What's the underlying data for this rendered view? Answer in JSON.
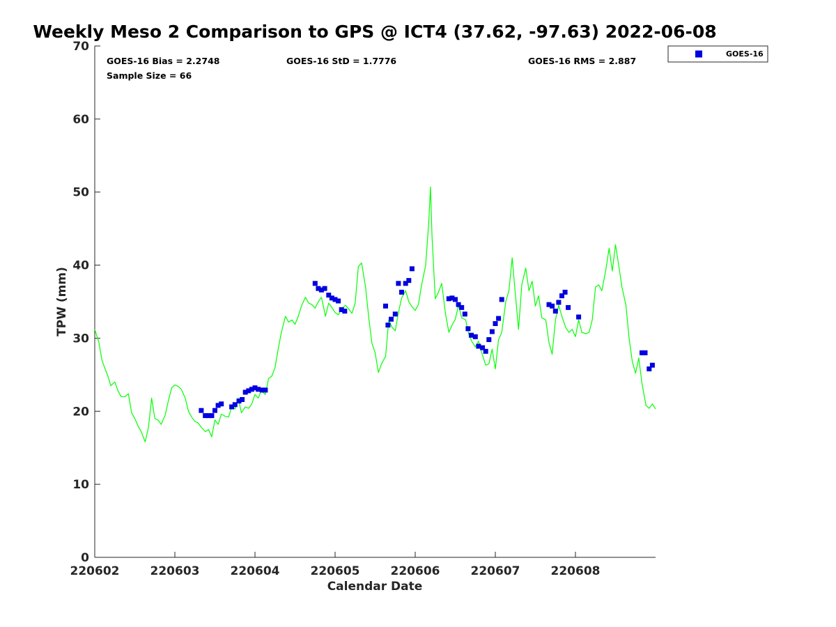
{
  "chart_data": {
    "type": "scatter",
    "title": "Weekly Meso 2 Comparison to GPS @ ICT4 (37.62, -97.63) 2022-06-08",
    "xlabel": "Calendar Date",
    "ylabel": "TPW (mm)",
    "xlim": [
      0,
      7
    ],
    "ylim": [
      0,
      70
    ],
    "x_ticks": [
      0,
      1,
      2,
      3,
      4,
      5,
      6
    ],
    "x_tick_labels": [
      "220602",
      "220603",
      "220604",
      "220605",
      "220606",
      "220607",
      "220608"
    ],
    "y_ticks": [
      0,
      10,
      20,
      30,
      40,
      50,
      60,
      70
    ],
    "y_tick_labels": [
      "0",
      "10",
      "20",
      "30",
      "40",
      "50",
      "60",
      "70"
    ],
    "grid": false,
    "legend_position": "top-right, outside plot",
    "stats": {
      "bias": "GOES-16 Bias = 2.2748",
      "std": "GOES-16 StD = 1.7776",
      "rms": "GOES-16 RMS = 2.887",
      "sample": "Sample Size = 66"
    },
    "series": [
      {
        "name": "GOES-16",
        "kind": "scatter",
        "marker": "square",
        "color": "#0000e0",
        "points": [
          [
            1.33,
            20.1
          ],
          [
            1.38,
            19.4
          ],
          [
            1.42,
            19.4
          ],
          [
            1.46,
            19.4
          ],
          [
            1.5,
            20.1
          ],
          [
            1.54,
            20.8
          ],
          [
            1.58,
            21.0
          ],
          [
            1.71,
            20.6
          ],
          [
            1.75,
            20.9
          ],
          [
            1.8,
            21.4
          ],
          [
            1.84,
            21.6
          ],
          [
            1.88,
            22.6
          ],
          [
            1.92,
            22.8
          ],
          [
            1.96,
            23.0
          ],
          [
            2.0,
            23.2
          ],
          [
            2.04,
            23.0
          ],
          [
            2.09,
            22.9
          ],
          [
            2.13,
            22.9
          ],
          [
            2.75,
            37.5
          ],
          [
            2.79,
            36.8
          ],
          [
            2.83,
            36.6
          ],
          [
            2.87,
            36.8
          ],
          [
            2.92,
            35.9
          ],
          [
            2.96,
            35.5
          ],
          [
            3.0,
            35.3
          ],
          [
            3.04,
            35.1
          ],
          [
            3.08,
            33.9
          ],
          [
            3.12,
            33.7
          ],
          [
            3.63,
            34.4
          ],
          [
            3.66,
            31.8
          ],
          [
            3.7,
            32.6
          ],
          [
            3.75,
            33.3
          ],
          [
            3.79,
            37.5
          ],
          [
            3.83,
            36.3
          ],
          [
            3.88,
            37.5
          ],
          [
            3.92,
            37.9
          ],
          [
            3.96,
            39.5
          ],
          [
            4.42,
            35.4
          ],
          [
            4.46,
            35.5
          ],
          [
            4.5,
            35.3
          ],
          [
            4.54,
            34.6
          ],
          [
            4.58,
            34.2
          ],
          [
            4.62,
            33.3
          ],
          [
            4.66,
            31.3
          ],
          [
            4.7,
            30.4
          ],
          [
            4.75,
            30.2
          ],
          [
            4.79,
            28.9
          ],
          [
            4.84,
            28.7
          ],
          [
            4.88,
            28.2
          ],
          [
            4.92,
            29.8
          ],
          [
            4.96,
            30.9
          ],
          [
            5.0,
            32.0
          ],
          [
            5.04,
            32.7
          ],
          [
            5.08,
            35.3
          ],
          [
            5.67,
            34.6
          ],
          [
            5.71,
            34.4
          ],
          [
            5.75,
            33.7
          ],
          [
            5.79,
            34.9
          ],
          [
            5.83,
            35.8
          ],
          [
            5.87,
            36.3
          ],
          [
            5.91,
            34.2
          ],
          [
            6.04,
            32.9
          ],
          [
            6.83,
            28.0
          ],
          [
            6.87,
            28.0
          ],
          [
            6.92,
            25.8
          ],
          [
            6.96,
            26.3
          ]
        ]
      },
      {
        "name": "",
        "kind": "line",
        "color": "#00ff00",
        "points": [
          [
            0.0,
            31.2
          ],
          [
            0.05,
            29.5
          ],
          [
            0.09,
            27.0
          ],
          [
            0.13,
            25.8
          ],
          [
            0.17,
            24.6
          ],
          [
            0.2,
            23.5
          ],
          [
            0.25,
            24.0
          ],
          [
            0.29,
            22.8
          ],
          [
            0.33,
            22.0
          ],
          [
            0.38,
            22.0
          ],
          [
            0.42,
            22.4
          ],
          [
            0.46,
            19.8
          ],
          [
            0.5,
            19.0
          ],
          [
            0.54,
            18.0
          ],
          [
            0.58,
            17.2
          ],
          [
            0.63,
            15.8
          ],
          [
            0.67,
            17.8
          ],
          [
            0.71,
            21.8
          ],
          [
            0.75,
            19.0
          ],
          [
            0.79,
            18.8
          ],
          [
            0.83,
            18.2
          ],
          [
            0.88,
            19.5
          ],
          [
            0.92,
            21.5
          ],
          [
            0.96,
            23.2
          ],
          [
            1.0,
            23.6
          ],
          [
            1.04,
            23.4
          ],
          [
            1.08,
            23.0
          ],
          [
            1.13,
            21.8
          ],
          [
            1.17,
            20.0
          ],
          [
            1.21,
            19.2
          ],
          [
            1.25,
            18.6
          ],
          [
            1.29,
            18.4
          ],
          [
            1.33,
            17.8
          ],
          [
            1.38,
            17.2
          ],
          [
            1.42,
            17.5
          ],
          [
            1.46,
            16.5
          ],
          [
            1.5,
            18.8
          ],
          [
            1.54,
            18.2
          ],
          [
            1.58,
            19.6
          ],
          [
            1.63,
            19.3
          ],
          [
            1.67,
            19.2
          ],
          [
            1.71,
            20.6
          ],
          [
            1.75,
            20.3
          ],
          [
            1.79,
            21.8
          ],
          [
            1.83,
            19.8
          ],
          [
            1.88,
            20.6
          ],
          [
            1.92,
            20.4
          ],
          [
            1.96,
            21.0
          ],
          [
            2.0,
            22.3
          ],
          [
            2.04,
            21.8
          ],
          [
            2.08,
            22.8
          ],
          [
            2.13,
            22.3
          ],
          [
            2.17,
            24.5
          ],
          [
            2.21,
            24.8
          ],
          [
            2.25,
            26.0
          ],
          [
            2.29,
            28.5
          ],
          [
            2.33,
            30.8
          ],
          [
            2.38,
            33.0
          ],
          [
            2.42,
            32.2
          ],
          [
            2.46,
            32.5
          ],
          [
            2.5,
            31.9
          ],
          [
            2.54,
            33.0
          ],
          [
            2.58,
            34.4
          ],
          [
            2.63,
            35.6
          ],
          [
            2.67,
            34.8
          ],
          [
            2.71,
            34.6
          ],
          [
            2.75,
            34.1
          ],
          [
            2.79,
            35.0
          ],
          [
            2.83,
            35.6
          ],
          [
            2.88,
            33.0
          ],
          [
            2.92,
            34.8
          ],
          [
            2.96,
            34.2
          ],
          [
            3.0,
            33.5
          ],
          [
            3.04,
            33.2
          ],
          [
            3.08,
            34.0
          ],
          [
            3.13,
            34.5
          ],
          [
            3.17,
            34.0
          ],
          [
            3.21,
            33.4
          ],
          [
            3.25,
            34.8
          ],
          [
            3.29,
            39.8
          ],
          [
            3.33,
            40.3
          ],
          [
            3.38,
            37.0
          ],
          [
            3.42,
            32.8
          ],
          [
            3.46,
            29.3
          ],
          [
            3.5,
            28.0
          ],
          [
            3.54,
            25.3
          ],
          [
            3.58,
            26.5
          ],
          [
            3.63,
            27.5
          ],
          [
            3.67,
            32.5
          ],
          [
            3.71,
            31.5
          ],
          [
            3.75,
            31.0
          ],
          [
            3.79,
            33.5
          ],
          [
            3.83,
            35.5
          ],
          [
            3.88,
            36.5
          ],
          [
            3.92,
            35.0
          ],
          [
            3.96,
            34.3
          ],
          [
            4.0,
            33.8
          ],
          [
            4.04,
            34.6
          ],
          [
            4.08,
            37.3
          ],
          [
            4.13,
            40.0
          ],
          [
            4.17,
            46.0
          ],
          [
            4.19,
            50.7
          ],
          [
            4.21,
            44.0
          ],
          [
            4.25,
            35.4
          ],
          [
            4.29,
            36.3
          ],
          [
            4.33,
            37.5
          ],
          [
            4.38,
            33.2
          ],
          [
            4.42,
            30.8
          ],
          [
            4.46,
            31.8
          ],
          [
            4.5,
            32.6
          ],
          [
            4.54,
            34.5
          ],
          [
            4.58,
            32.8
          ],
          [
            4.63,
            32.5
          ],
          [
            4.67,
            30.5
          ],
          [
            4.71,
            29.5
          ],
          [
            4.75,
            28.8
          ],
          [
            4.79,
            29.6
          ],
          [
            4.83,
            28.0
          ],
          [
            4.88,
            26.3
          ],
          [
            4.92,
            26.5
          ],
          [
            4.96,
            28.5
          ],
          [
            5.0,
            25.8
          ],
          [
            5.04,
            29.8
          ],
          [
            5.08,
            30.8
          ],
          [
            5.13,
            35.0
          ],
          [
            5.17,
            36.5
          ],
          [
            5.21,
            41.0
          ],
          [
            5.25,
            36.0
          ],
          [
            5.29,
            31.2
          ],
          [
            5.33,
            37.3
          ],
          [
            5.38,
            39.6
          ],
          [
            5.42,
            36.5
          ],
          [
            5.46,
            37.8
          ],
          [
            5.5,
            34.4
          ],
          [
            5.54,
            35.8
          ],
          [
            5.58,
            32.8
          ],
          [
            5.63,
            32.5
          ],
          [
            5.67,
            29.4
          ],
          [
            5.71,
            27.8
          ],
          [
            5.75,
            32.5
          ],
          [
            5.79,
            34.5
          ],
          [
            5.83,
            33.0
          ],
          [
            5.88,
            31.4
          ],
          [
            5.92,
            30.8
          ],
          [
            5.96,
            31.2
          ],
          [
            6.0,
            30.2
          ],
          [
            6.04,
            32.5
          ],
          [
            6.08,
            30.8
          ],
          [
            6.13,
            30.6
          ],
          [
            6.17,
            30.8
          ],
          [
            6.21,
            32.5
          ],
          [
            6.25,
            37.0
          ],
          [
            6.29,
            37.3
          ],
          [
            6.33,
            36.5
          ],
          [
            6.38,
            39.4
          ],
          [
            6.42,
            42.3
          ],
          [
            6.46,
            39.2
          ],
          [
            6.5,
            42.8
          ],
          [
            6.54,
            40.0
          ],
          [
            6.58,
            37.0
          ],
          [
            6.63,
            34.5
          ],
          [
            6.67,
            30.0
          ],
          [
            6.71,
            26.8
          ],
          [
            6.75,
            25.2
          ],
          [
            6.79,
            27.3
          ],
          [
            6.83,
            23.8
          ],
          [
            6.88,
            20.8
          ],
          [
            6.92,
            20.4
          ],
          [
            6.96,
            21.0
          ],
          [
            7.0,
            20.3
          ]
        ]
      }
    ]
  }
}
